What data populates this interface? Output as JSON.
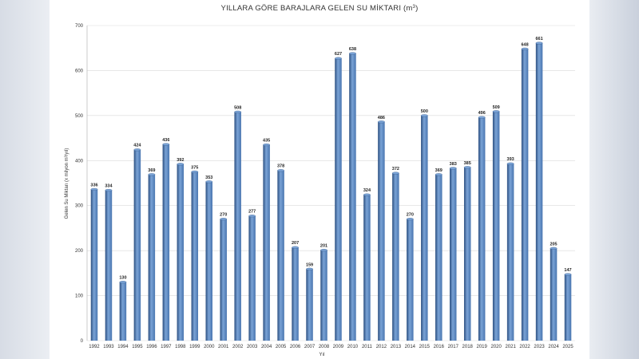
{
  "chart_data": {
    "type": "bar",
    "title_main": "YILLARA GÖRE BARAJLARA GELEN SU MİKTARI (m",
    "title_sup": "3",
    "title_end": ")",
    "xlabel": "Yıl",
    "ylabel": "Gelen Su Miktarı (x milyon m³/yıl)",
    "ylim": [
      0,
      700
    ],
    "yticks": [
      0,
      100,
      200,
      300,
      400,
      500,
      600,
      700
    ],
    "grid": true,
    "legend": "none",
    "bar_color": "#4a76b0",
    "bar_color_dark": "#2c4f80",
    "bar_color_light": "#7aa3d6",
    "categories": [
      "1992",
      "1993",
      "1994",
      "1995",
      "1996",
      "1997",
      "1998",
      "1999",
      "2000",
      "2001",
      "2002",
      "2003",
      "2004",
      "2005",
      "2006",
      "2007",
      "2008",
      "2009",
      "2010",
      "2011",
      "2012",
      "2013",
      "2014",
      "2015",
      "2016",
      "2017",
      "2018",
      "2019",
      "2020",
      "2021",
      "2022",
      "2023",
      "2024",
      "2025"
    ],
    "values": [
      336,
      334,
      130,
      424,
      369,
      436,
      392,
      375,
      353,
      270,
      508,
      277,
      435,
      378,
      207,
      159,
      201,
      627,
      638,
      324,
      486,
      372,
      270,
      500,
      369,
      383,
      385,
      496,
      509,
      393,
      648,
      661,
      205,
      147
    ]
  }
}
